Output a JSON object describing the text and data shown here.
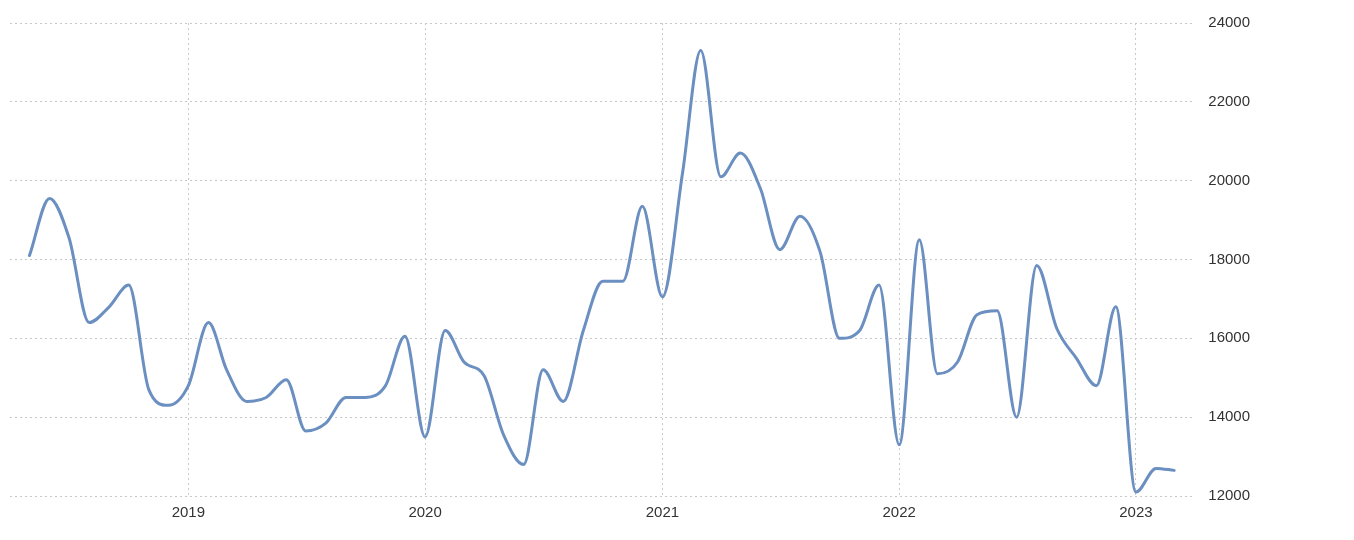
{
  "chart_data": {
    "type": "line",
    "x": [
      "2018-05",
      "2018-06",
      "2018-07",
      "2018-08",
      "2018-09",
      "2018-10",
      "2018-11",
      "2018-12",
      "2019-01",
      "2019-02",
      "2019-03",
      "2019-04",
      "2019-05",
      "2019-06",
      "2019-07",
      "2019-08",
      "2019-09",
      "2019-10",
      "2019-11",
      "2019-12",
      "2020-01",
      "2020-02",
      "2020-03",
      "2020-04",
      "2020-05",
      "2020-06",
      "2020-07",
      "2020-08",
      "2020-09",
      "2020-10",
      "2020-11",
      "2020-12",
      "2021-01",
      "2021-02",
      "2021-03",
      "2021-04",
      "2021-05",
      "2021-06",
      "2021-07",
      "2021-08",
      "2021-09",
      "2021-10",
      "2021-11",
      "2021-12",
      "2022-01",
      "2022-02",
      "2022-03",
      "2022-04",
      "2022-05",
      "2022-06",
      "2022-07",
      "2022-08",
      "2022-09",
      "2022-10",
      "2022-11",
      "2022-12",
      "2023-01",
      "2023-02",
      "2023-03"
    ],
    "series": [
      {
        "color": "#6a8fc0",
        "values": [
          18100,
          19550,
          18550,
          16400,
          16800,
          17350,
          14700,
          14300,
          14800,
          16400,
          15200,
          14400,
          14500,
          14950,
          13650,
          13850,
          14500,
          14500,
          14800,
          16050,
          13500,
          16200,
          15400,
          15050,
          13550,
          12800,
          15200,
          14400,
          16200,
          17450,
          17450,
          19350,
          17050,
          20200,
          23300,
          20100,
          20700,
          19800,
          18250,
          19100,
          18200,
          16000,
          16200,
          17350,
          13300,
          18500,
          15100,
          15400,
          16600,
          16700,
          14000,
          17850,
          16250,
          15500,
          14800,
          16800,
          12100,
          12700,
          12650
        ]
      }
    ],
    "xlim": [
      "2018-04",
      "2023-04"
    ],
    "xticks": [
      {
        "value": "2019",
        "label": "2019"
      },
      {
        "value": "2020",
        "label": "2020"
      },
      {
        "value": "2021",
        "label": "2021"
      },
      {
        "value": "2022",
        "label": "2022"
      },
      {
        "value": "2023",
        "label": "2023"
      }
    ],
    "ylim": [
      12000,
      24000
    ],
    "yticks": [
      12000,
      14000,
      16000,
      18000,
      20000,
      22000,
      24000
    ],
    "grid": true,
    "legend": false,
    "marker": "none",
    "line_style": "solid"
  }
}
